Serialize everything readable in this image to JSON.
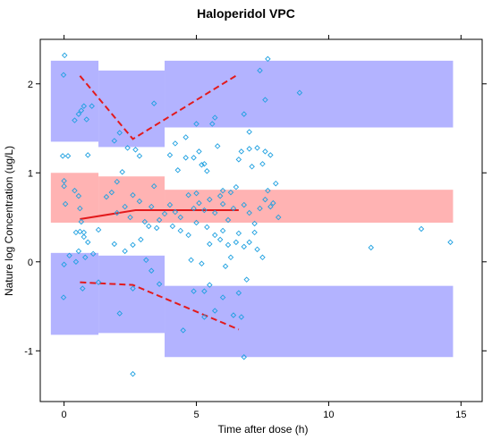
{
  "chart_data": {
    "type": "scatter",
    "title": "Haloperidol VPC",
    "xlabel": "Time after dose (h)",
    "ylabel": "Nature log Concentration (ug/L)",
    "xlim": [
      -0.9,
      15.8
    ],
    "ylim": [
      -1.57,
      2.5
    ],
    "xticks": [
      0,
      5,
      10,
      15
    ],
    "yticks": [
      -1,
      0,
      1,
      2
    ],
    "colors": {
      "outer_band": "#b3b3ff",
      "median_band": "#ffb3b3",
      "line": "#e31a1c",
      "points": "#1ea0e0"
    },
    "bands": [
      {
        "role": "upper",
        "segments": [
          {
            "x0": -0.5,
            "x1": 1.3,
            "ylo": 1.35,
            "yhi": 2.26
          },
          {
            "x0": 1.3,
            "x1": 3.8,
            "ylo": 1.29,
            "yhi": 2.15
          },
          {
            "x0": 3.8,
            "x1": 14.7,
            "ylo": 1.51,
            "yhi": 2.26
          }
        ]
      },
      {
        "role": "median",
        "segments": [
          {
            "x0": -0.5,
            "x1": 1.3,
            "ylo": 0.44,
            "yhi": 1.0
          },
          {
            "x0": 1.3,
            "x1": 3.8,
            "ylo": 0.44,
            "yhi": 0.96
          },
          {
            "x0": 3.8,
            "x1": 14.7,
            "ylo": 0.44,
            "yhi": 0.81
          }
        ]
      },
      {
        "role": "lower",
        "segments": [
          {
            "x0": -0.5,
            "x1": 1.3,
            "ylo": -0.82,
            "yhi": 0.1
          },
          {
            "x0": 1.3,
            "x1": 3.8,
            "ylo": -0.8,
            "yhi": 0.07
          },
          {
            "x0": 3.8,
            "x1": 14.7,
            "ylo": -1.07,
            "yhi": -0.27
          }
        ]
      }
    ],
    "lines": [
      {
        "role": "observed upper percentile",
        "style": "dashed",
        "x": [
          0.6,
          2.6,
          6.6
        ],
        "y": [
          2.09,
          1.38,
          2.11
        ]
      },
      {
        "role": "observed median",
        "style": "solid",
        "x": [
          0.6,
          2.7,
          6.6
        ],
        "y": [
          0.48,
          0.58,
          0.58
        ]
      },
      {
        "role": "observed lower percentile",
        "style": "dashed",
        "x": [
          0.6,
          2.6,
          6.6
        ],
        "y": [
          -0.23,
          -0.26,
          -0.76
        ]
      }
    ],
    "points": [
      [
        0.02,
        2.32
      ],
      [
        -0.02,
        2.1
      ],
      [
        -0.05,
        1.19
      ],
      [
        0.15,
        1.19
      ],
      [
        0.4,
        1.59
      ],
      [
        0.55,
        1.66
      ],
      [
        0.65,
        1.7
      ],
      [
        0.75,
        1.75
      ],
      [
        0.85,
        1.6
      ],
      [
        0.9,
        1.2
      ],
      [
        1.05,
        1.75
      ],
      [
        0.0,
        0.91
      ],
      [
        0.0,
        0.85
      ],
      [
        0.05,
        0.65
      ],
      [
        0.4,
        0.8
      ],
      [
        0.55,
        0.74
      ],
      [
        0.6,
        0.6
      ],
      [
        0.65,
        0.45
      ],
      [
        0.45,
        0.33
      ],
      [
        0.6,
        0.34
      ],
      [
        0.75,
        0.33
      ],
      [
        0.75,
        0.28
      ],
      [
        1.3,
        0.36
      ],
      [
        0.9,
        0.22
      ],
      [
        0.8,
        0.05
      ],
      [
        0.55,
        0.12
      ],
      [
        0.45,
        0.0
      ],
      [
        0.2,
        0.07
      ],
      [
        0.0,
        -0.03
      ],
      [
        -0.02,
        -0.4
      ],
      [
        0.7,
        -0.3
      ],
      [
        1.1,
        0.09
      ],
      [
        1.3,
        -0.23
      ],
      [
        1.6,
        0.73
      ],
      [
        1.8,
        0.78
      ],
      [
        2.0,
        0.9
      ],
      [
        1.9,
        1.36
      ],
      [
        2.1,
        1.45
      ],
      [
        2.4,
        1.28
      ],
      [
        2.7,
        1.26
      ],
      [
        2.85,
        1.19
      ],
      [
        3.4,
        1.78
      ],
      [
        2.2,
        1.01
      ],
      [
        2.0,
        0.55
      ],
      [
        2.3,
        0.62
      ],
      [
        2.5,
        0.5
      ],
      [
        2.6,
        0.75
      ],
      [
        2.85,
        0.68
      ],
      [
        3.05,
        0.45
      ],
      [
        3.2,
        0.4
      ],
      [
        3.3,
        0.62
      ],
      [
        3.4,
        0.85
      ],
      [
        3.5,
        0.38
      ],
      [
        3.6,
        0.47
      ],
      [
        3.8,
        0.54
      ],
      [
        1.9,
        0.2
      ],
      [
        2.3,
        0.12
      ],
      [
        2.6,
        0.19
      ],
      [
        2.9,
        0.25
      ],
      [
        3.1,
        0.02
      ],
      [
        3.3,
        -0.1
      ],
      [
        3.6,
        -0.25
      ],
      [
        2.6,
        -0.3
      ],
      [
        2.1,
        -0.58
      ],
      [
        2.6,
        -1.26
      ],
      [
        4.0,
        1.2
      ],
      [
        4.2,
        1.33
      ],
      [
        4.3,
        1.03
      ],
      [
        4.6,
        1.17
      ],
      [
        4.6,
        1.4
      ],
      [
        4.9,
        1.17
      ],
      [
        5.0,
        1.55
      ],
      [
        5.1,
        1.24
      ],
      [
        5.2,
        1.09
      ],
      [
        5.3,
        1.1
      ],
      [
        5.4,
        1.02
      ],
      [
        5.6,
        1.55
      ],
      [
        5.7,
        1.62
      ],
      [
        5.8,
        1.3
      ],
      [
        4.0,
        0.64
      ],
      [
        4.2,
        0.56
      ],
      [
        4.4,
        0.5
      ],
      [
        4.7,
        0.75
      ],
      [
        4.9,
        0.6
      ],
      [
        5.0,
        0.77
      ],
      [
        5.1,
        0.66
      ],
      [
        5.3,
        0.58
      ],
      [
        5.5,
        0.7
      ],
      [
        5.7,
        0.55
      ],
      [
        5.9,
        0.74
      ],
      [
        6.0,
        0.65
      ],
      [
        4.1,
        0.4
      ],
      [
        4.4,
        0.35
      ],
      [
        4.7,
        0.3
      ],
      [
        5.0,
        0.44
      ],
      [
        5.4,
        0.39
      ],
      [
        5.7,
        0.3
      ],
      [
        6.0,
        0.35
      ],
      [
        4.8,
        0.02
      ],
      [
        5.2,
        -0.02
      ],
      [
        5.5,
        0.2
      ],
      [
        5.9,
        0.25
      ],
      [
        6.2,
        0.19
      ],
      [
        4.9,
        -0.33
      ],
      [
        5.3,
        -0.33
      ],
      [
        5.5,
        -0.26
      ],
      [
        5.7,
        -0.55
      ],
      [
        4.5,
        -0.77
      ],
      [
        5.3,
        -0.62
      ],
      [
        6.0,
        -0.4
      ],
      [
        6.6,
        -0.35
      ],
      [
        6.8,
        -1.07
      ],
      [
        6.0,
        0.8
      ],
      [
        6.3,
        0.78
      ],
      [
        6.5,
        0.84
      ],
      [
        6.6,
        1.15
      ],
      [
        6.7,
        1.24
      ],
      [
        6.8,
        1.66
      ],
      [
        7.0,
        1.27
      ],
      [
        7.1,
        1.07
      ],
      [
        7.3,
        1.28
      ],
      [
        7.5,
        1.1
      ],
      [
        7.6,
        1.24
      ],
      [
        7.4,
        2.15
      ],
      [
        7.7,
        2.28
      ],
      [
        7.8,
        1.2
      ],
      [
        8.9,
        1.9
      ],
      [
        6.2,
        0.47
      ],
      [
        6.4,
        0.6
      ],
      [
        6.6,
        0.32
      ],
      [
        6.8,
        0.64
      ],
      [
        7.0,
        0.55
      ],
      [
        7.2,
        0.43
      ],
      [
        7.4,
        0.6
      ],
      [
        7.6,
        0.7
      ],
      [
        7.7,
        0.8
      ],
      [
        7.9,
        0.66
      ],
      [
        8.1,
        0.5
      ],
      [
        8.0,
        0.88
      ],
      [
        7.8,
        0.62
      ],
      [
        6.5,
        0.22
      ],
      [
        6.8,
        0.17
      ],
      [
        7.0,
        0.22
      ],
      [
        7.2,
        0.33
      ],
      [
        7.3,
        0.14
      ],
      [
        7.5,
        0.05
      ],
      [
        6.3,
        0.05
      ],
      [
        6.1,
        -0.05
      ],
      [
        6.9,
        -0.2
      ],
      [
        6.4,
        -0.6
      ],
      [
        6.7,
        -0.62
      ],
      [
        7.0,
        1.46
      ],
      [
        7.6,
        1.82
      ],
      [
        11.6,
        0.16
      ],
      [
        13.5,
        0.37
      ],
      [
        14.6,
        0.22
      ]
    ]
  }
}
